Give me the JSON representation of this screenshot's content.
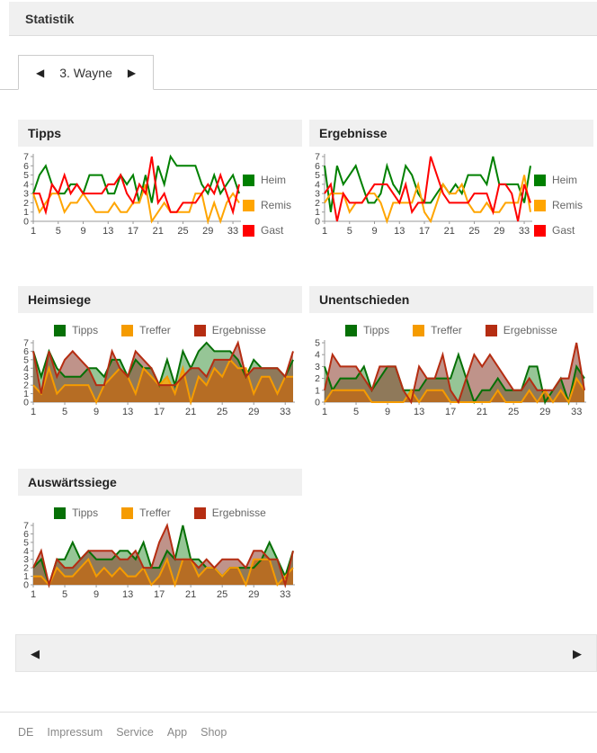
{
  "header": {
    "title": "Statistik"
  },
  "tab": {
    "prev_icon": "◀",
    "label": "3. Wayne",
    "next_icon": "▶"
  },
  "pager": {
    "prev_icon": "◀",
    "next_icon": "▶"
  },
  "footer": {
    "links": [
      "DE",
      "Impressum",
      "Service",
      "App",
      "Shop"
    ]
  },
  "colors": {
    "panel_header_bg": "#f0f0f0",
    "axis": "#999999",
    "tick_text": "#444444",
    "legend_text": "#666666"
  },
  "chart_data": [
    {
      "id": "tipps",
      "title": "Tipps",
      "type": "line",
      "legend_position": "right",
      "ylim": [
        0,
        7
      ],
      "x_ticks": [
        1,
        5,
        9,
        13,
        17,
        21,
        25,
        29,
        33
      ],
      "x_max": 34,
      "series": [
        {
          "name": "Heim",
          "color": "#008000",
          "values": [
            3,
            5,
            6,
            4,
            3,
            3,
            4,
            4,
            3,
            5,
            5,
            5,
            3,
            3,
            5,
            4,
            5,
            2,
            5,
            2,
            6,
            4,
            7,
            6,
            6,
            6,
            6,
            4,
            3,
            5,
            3,
            4,
            5,
            3
          ]
        },
        {
          "name": "Remis",
          "color": "#ffa500",
          "values": [
            3,
            1,
            2,
            3,
            3,
            1,
            2,
            2,
            3,
            2,
            1,
            1,
            1,
            2,
            1,
            1,
            2,
            2,
            4,
            0,
            1,
            2,
            1,
            1,
            1,
            1,
            3,
            3,
            0,
            2,
            0,
            2,
            3,
            2
          ]
        },
        {
          "name": "Gast",
          "color": "#ff0000",
          "values": [
            3,
            3,
            1,
            4,
            3,
            5,
            3,
            4,
            3,
            3,
            3,
            3,
            4,
            4,
            5,
            3,
            2,
            4,
            3,
            7,
            2,
            3,
            1,
            1,
            2,
            2,
            2,
            3,
            4,
            3,
            5,
            3,
            1,
            4
          ]
        }
      ]
    },
    {
      "id": "ergebnisse",
      "title": "Ergebnisse",
      "type": "line",
      "legend_position": "right",
      "ylim": [
        0,
        7
      ],
      "x_ticks": [
        1,
        5,
        9,
        13,
        17,
        21,
        25,
        29,
        33
      ],
      "x_max": 34,
      "series": [
        {
          "name": "Heim",
          "color": "#008000",
          "values": [
            6,
            1,
            6,
            4,
            5,
            6,
            4,
            2,
            2,
            3,
            6,
            4,
            3,
            6,
            5,
            3,
            2,
            2,
            3,
            4,
            3,
            4,
            3,
            5,
            5,
            5,
            4,
            7,
            4,
            4,
            4,
            4,
            2,
            6
          ]
        },
        {
          "name": "Remis",
          "color": "#ffa500",
          "values": [
            2,
            3,
            3,
            3,
            1,
            2,
            2,
            3,
            3,
            2,
            0,
            2,
            2,
            2,
            2,
            4,
            1,
            0,
            2,
            4,
            3,
            3,
            4,
            2,
            1,
            1,
            2,
            1,
            1,
            2,
            2,
            2,
            5,
            1
          ]
        },
        {
          "name": "Gast",
          "color": "#ff0000",
          "values": [
            3,
            4,
            0,
            3,
            2,
            2,
            2,
            3,
            4,
            4,
            4,
            3,
            2,
            4,
            1,
            2,
            2,
            7,
            5,
            3,
            2,
            2,
            2,
            2,
            3,
            3,
            3,
            1,
            4,
            4,
            3,
            0,
            4,
            2
          ]
        }
      ]
    },
    {
      "id": "heimsiege",
      "title": "Heimsiege",
      "type": "area",
      "legend_position": "top",
      "ylim": [
        0,
        7
      ],
      "x_ticks": [
        1,
        5,
        9,
        13,
        17,
        21,
        25,
        29,
        33
      ],
      "x_max": 34,
      "series": [
        {
          "name": "Tipps",
          "color": "#067006",
          "fill": "#2e8b2e",
          "fill_opacity": 0.5,
          "values": [
            6,
            3,
            6,
            4,
            3,
            3,
            3,
            4,
            4,
            3,
            5,
            5,
            3,
            5,
            4,
            4,
            2,
            5,
            2,
            6,
            4,
            6,
            7,
            6,
            6,
            6,
            5,
            3,
            5,
            4,
            4,
            4,
            3,
            5
          ]
        },
        {
          "name": "Treffer",
          "color": "#f59b00",
          "fill": "#ffa500",
          "fill_opacity": 0.8,
          "values": [
            2,
            1,
            4,
            1,
            2,
            2,
            2,
            2,
            0,
            2,
            3,
            4,
            3,
            1,
            4,
            3,
            2,
            3,
            1,
            4,
            0,
            3,
            2,
            4,
            3,
            5,
            4,
            4,
            1,
            3,
            3,
            1,
            3,
            3
          ]
        },
        {
          "name": "Ergebnisse",
          "color": "#b52d12",
          "fill": "#8b3a2a",
          "fill_opacity": 0.55,
          "values": [
            6,
            1,
            6,
            3,
            5,
            6,
            5,
            4,
            2,
            2,
            6,
            4,
            3,
            6,
            5,
            4,
            2,
            2,
            2,
            3,
            4,
            4,
            3,
            5,
            5,
            5,
            7,
            3,
            4,
            4,
            4,
            4,
            3,
            6
          ]
        }
      ]
    },
    {
      "id": "unentschieden",
      "title": "Unentschieden",
      "type": "area",
      "legend_position": "top",
      "ylim": [
        0,
        5
      ],
      "x_ticks": [
        1,
        5,
        9,
        13,
        17,
        21,
        25,
        29,
        33
      ],
      "x_max": 34,
      "series": [
        {
          "name": "Tipps",
          "color": "#067006",
          "fill": "#2e8b2e",
          "fill_opacity": 0.5,
          "values": [
            3,
            1,
            2,
            2,
            2,
            3,
            1,
            2,
            3,
            3,
            1,
            1,
            1,
            2,
            2,
            2,
            2,
            4,
            2,
            0,
            1,
            1,
            2,
            1,
            1,
            1,
            3,
            3,
            0,
            1,
            2,
            0,
            3,
            2
          ]
        },
        {
          "name": "Treffer",
          "color": "#f59b00",
          "fill": "#ffa500",
          "fill_opacity": 0.8,
          "values": [
            0,
            1,
            1,
            1,
            1,
            1,
            0,
            0,
            0,
            0,
            0,
            1,
            0,
            1,
            1,
            1,
            0,
            0,
            0,
            0,
            0,
            0,
            1,
            0,
            0,
            0,
            1,
            0,
            1,
            0,
            1,
            0,
            2,
            1
          ]
        },
        {
          "name": "Ergebnisse",
          "color": "#b52d12",
          "fill": "#8b3a2a",
          "fill_opacity": 0.55,
          "values": [
            1,
            4,
            3,
            3,
            3,
            2,
            1,
            3,
            3,
            3,
            1,
            0,
            3,
            2,
            2,
            4,
            1,
            0,
            2,
            4,
            3,
            4,
            3,
            2,
            1,
            1,
            2,
            1,
            1,
            1,
            2,
            2,
            5,
            1
          ]
        }
      ]
    },
    {
      "id": "auswaertssiege",
      "title": "Auswärtssiege",
      "type": "area",
      "legend_position": "top",
      "ylim": [
        0,
        7
      ],
      "x_ticks": [
        1,
        5,
        9,
        13,
        17,
        21,
        25,
        29,
        33
      ],
      "x_max": 34,
      "series": [
        {
          "name": "Tipps",
          "color": "#067006",
          "fill": "#2e8b2e",
          "fill_opacity": 0.5,
          "values": [
            2,
            3,
            0,
            3,
            3,
            5,
            3,
            4,
            3,
            3,
            3,
            4,
            4,
            3,
            5,
            2,
            2,
            4,
            3,
            7,
            3,
            3,
            2,
            2,
            1,
            2,
            2,
            2,
            2,
            3,
            5,
            3,
            1,
            4
          ]
        },
        {
          "name": "Treffer",
          "color": "#f59b00",
          "fill": "#ffa500",
          "fill_opacity": 0.8,
          "values": [
            1,
            1,
            0,
            2,
            1,
            1,
            2,
            3,
            1,
            2,
            1,
            2,
            1,
            1,
            2,
            0,
            1,
            3,
            0,
            3,
            3,
            1,
            2,
            2,
            1,
            2,
            2,
            0,
            3,
            3,
            3,
            0,
            1,
            2
          ]
        },
        {
          "name": "Ergebnisse",
          "color": "#b52d12",
          "fill": "#8b3a2a",
          "fill_opacity": 0.55,
          "values": [
            2,
            4,
            0,
            3,
            2,
            2,
            3,
            4,
            4,
            4,
            4,
            3,
            3,
            4,
            2,
            2,
            5,
            7,
            3,
            3,
            3,
            2,
            3,
            2,
            3,
            3,
            3,
            2,
            4,
            4,
            3,
            3,
            0,
            4
          ]
        }
      ]
    }
  ]
}
